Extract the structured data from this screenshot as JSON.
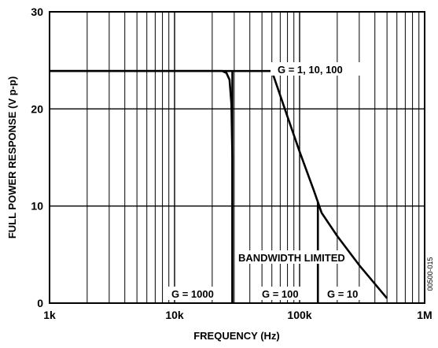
{
  "chart_data": {
    "type": "line",
    "xlabel": "FREQUENCY (Hz)",
    "ylabel": "FULL POWER RESPONSE (V p-p)",
    "x_scale": "log",
    "xlim": [
      1000,
      1000000
    ],
    "ylim": [
      0,
      30
    ],
    "grid": true,
    "x_ticks": [
      {
        "value": 1000,
        "label": "1k"
      },
      {
        "value": 10000,
        "label": "10k"
      },
      {
        "value": 100000,
        "label": "100k"
      },
      {
        "value": 1000000,
        "label": "1M"
      }
    ],
    "y_ticks": [
      {
        "value": 0,
        "label": "0"
      },
      {
        "value": 10,
        "label": "10"
      },
      {
        "value": 20,
        "label": "20"
      },
      {
        "value": 30,
        "label": "30"
      }
    ],
    "series": [
      {
        "name": "G = 1, 10, 100",
        "x": [
          1000,
          60000,
          80000,
          100000,
          130000,
          150000,
          200000,
          300000,
          500000
        ],
        "y": [
          23.9,
          23.9,
          19.2,
          15.6,
          11.6,
          9.3,
          6.9,
          3.9,
          0.5
        ]
      },
      {
        "name": "G = 1000",
        "x": [
          1000,
          24000,
          26000,
          27500,
          28500,
          29000,
          29000
        ],
        "y": [
          23.9,
          23.9,
          23.7,
          23.0,
          20.5,
          15.0,
          0
        ]
      }
    ],
    "markers": [
      {
        "x": 29000,
        "y_from": 0,
        "y_to": 23.9
      },
      {
        "x": 140000,
        "y_from": 0,
        "y_to": 10.5
      }
    ],
    "annotations": {
      "g_all": "G = 1, 10, 100",
      "bandwidth_limited": "BANDWIDTH LIMITED",
      "g1000": "G = 1000",
      "g100": "G = 100",
      "g10": "G = 10"
    },
    "figure_code": "00500-015"
  }
}
